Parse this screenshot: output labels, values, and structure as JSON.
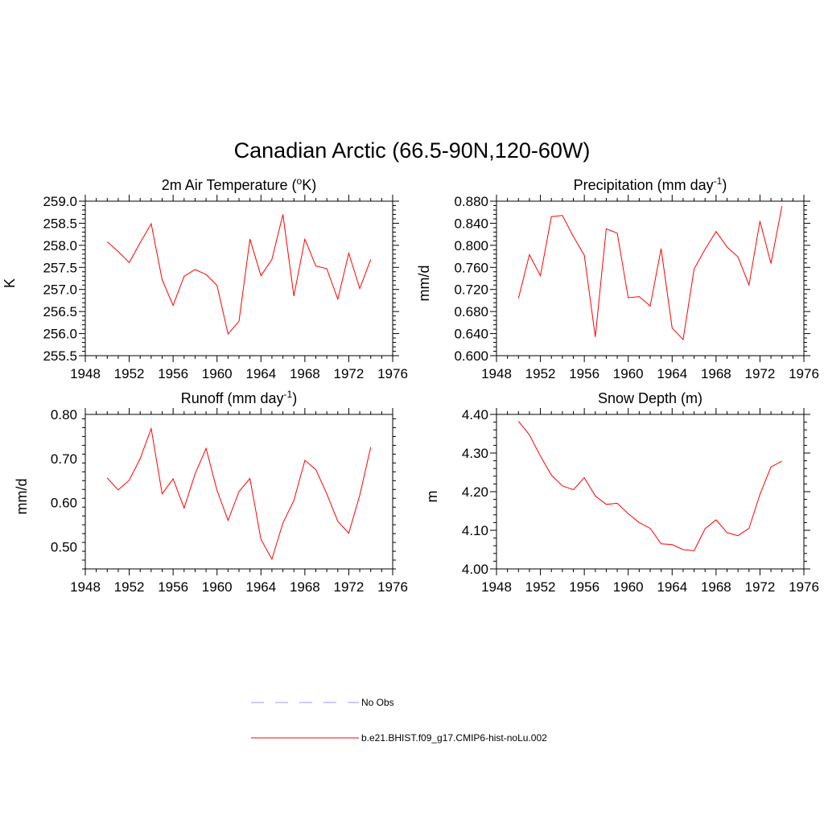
{
  "figure": {
    "title": "Canadian Arctic (66.5-90N,120-60W)"
  },
  "legend": {
    "items": [
      {
        "label": "No Obs",
        "color": "#9999ff",
        "dash": "dashed"
      },
      {
        "label": "b.e21.BHIST.f09_g17.CMIP6-hist-noLu.002",
        "color": "#ff0000",
        "dash": "solid"
      }
    ]
  },
  "chart_data": [
    {
      "type": "line",
      "title": "2m Air Temperature (oK)",
      "title_parts": [
        {
          "text": "2m Air Temperature ("
        },
        {
          "text": "o",
          "sup": true
        },
        {
          "text": "K)"
        }
      ],
      "ylabel": "K",
      "xlabel": "",
      "xlim": [
        1948,
        1976
      ],
      "xticks": [
        1948,
        1952,
        1956,
        1960,
        1964,
        1968,
        1972,
        1976
      ],
      "ylim": [
        255.5,
        259.0
      ],
      "yticks": [
        "255.5",
        "256.0",
        "256.5",
        "257.0",
        "257.5",
        "258.0",
        "258.5",
        "259.0"
      ],
      "series": [
        {
          "color": "#ff0000",
          "x": [
            1950,
            1951,
            1952,
            1953,
            1954,
            1955,
            1956,
            1957,
            1958,
            1959,
            1960,
            1961,
            1962,
            1963,
            1964,
            1965,
            1966,
            1967,
            1968,
            1969,
            1970,
            1971,
            1972,
            1973,
            1974
          ],
          "y": [
            258.08,
            257.86,
            257.61,
            258.06,
            258.49,
            257.22,
            256.64,
            257.3,
            257.45,
            257.34,
            257.09,
            255.99,
            256.28,
            258.14,
            257.31,
            257.68,
            258.7,
            256.85,
            258.14,
            257.53,
            257.47,
            256.78,
            257.82,
            257.02,
            257.68
          ]
        }
      ]
    },
    {
      "type": "line",
      "title": "Precipitation (mm day-1)",
      "title_parts": [
        {
          "text": "Precipitation (mm day"
        },
        {
          "text": "-1",
          "sup": true
        },
        {
          "text": ")"
        }
      ],
      "ylabel": "mm/d",
      "xlabel": "",
      "xlim": [
        1948,
        1976
      ],
      "xticks": [
        1948,
        1952,
        1956,
        1960,
        1964,
        1968,
        1972,
        1976
      ],
      "ylim": [
        0.6,
        0.88
      ],
      "yticks": [
        "0.600",
        "0.640",
        "0.680",
        "0.720",
        "0.760",
        "0.800",
        "0.840",
        "0.880"
      ],
      "series": [
        {
          "color": "#ff0000",
          "x": [
            1950,
            1951,
            1952,
            1953,
            1954,
            1955,
            1956,
            1957,
            1958,
            1959,
            1960,
            1961,
            1962,
            1963,
            1964,
            1965,
            1966,
            1967,
            1968,
            1969,
            1970,
            1971,
            1972,
            1973,
            1974
          ],
          "y": [
            0.704,
            0.783,
            0.745,
            0.852,
            0.854,
            0.816,
            0.782,
            0.634,
            0.83,
            0.822,
            0.705,
            0.707,
            0.69,
            0.794,
            0.65,
            0.629,
            0.757,
            0.793,
            0.825,
            0.797,
            0.779,
            0.728,
            0.844,
            0.767,
            0.871
          ]
        }
      ]
    },
    {
      "type": "line",
      "title": "Runoff (mm day-1)",
      "title_parts": [
        {
          "text": "Runoff (mm day"
        },
        {
          "text": "-1",
          "sup": true
        },
        {
          "text": ")"
        }
      ],
      "ylabel": "mm/d",
      "xlabel": "",
      "xlim": [
        1948,
        1976
      ],
      "xticks": [
        1948,
        1952,
        1956,
        1960,
        1964,
        1968,
        1972,
        1976
      ],
      "ylim": [
        0.45,
        0.8
      ],
      "yticks": [
        "0.50",
        "0.60",
        "0.70",
        "0.80"
      ],
      "ytick_values": [
        0.5,
        0.6,
        0.7,
        0.8
      ],
      "series": [
        {
          "color": "#ff0000",
          "x": [
            1950,
            1951,
            1952,
            1953,
            1954,
            1955,
            1956,
            1957,
            1958,
            1959,
            1960,
            1961,
            1962,
            1963,
            1964,
            1965,
            1966,
            1967,
            1968,
            1969,
            1970,
            1971,
            1972,
            1973,
            1974
          ],
          "y": [
            0.656,
            0.629,
            0.651,
            0.7,
            0.768,
            0.62,
            0.654,
            0.588,
            0.665,
            0.723,
            0.628,
            0.56,
            0.625,
            0.655,
            0.517,
            0.472,
            0.554,
            0.605,
            0.696,
            0.675,
            0.62,
            0.558,
            0.531,
            0.617,
            0.726
          ]
        }
      ]
    },
    {
      "type": "line",
      "title": "Snow Depth (m)",
      "title_parts": [
        {
          "text": "Snow Depth (m)"
        }
      ],
      "ylabel": "m",
      "xlabel": "",
      "xlim": [
        1948,
        1976
      ],
      "xticks": [
        1948,
        1952,
        1956,
        1960,
        1964,
        1968,
        1972,
        1976
      ],
      "ylim": [
        4.0,
        4.4
      ],
      "yticks": [
        "4.00",
        "4.10",
        "4.20",
        "4.30",
        "4.40"
      ],
      "series": [
        {
          "color": "#ff0000",
          "x": [
            1950,
            1951,
            1952,
            1953,
            1954,
            1955,
            1956,
            1957,
            1958,
            1959,
            1960,
            1961,
            1962,
            1963,
            1964,
            1965,
            1966,
            1967,
            1968,
            1969,
            1970,
            1971,
            1972,
            1973,
            1974
          ],
          "y": [
            4.382,
            4.347,
            4.292,
            4.243,
            4.215,
            4.205,
            4.236,
            4.189,
            4.167,
            4.17,
            4.143,
            4.12,
            4.105,
            4.065,
            4.063,
            4.05,
            4.047,
            4.104,
            4.127,
            4.094,
            4.086,
            4.105,
            4.193,
            4.264,
            4.279
          ]
        }
      ]
    }
  ]
}
